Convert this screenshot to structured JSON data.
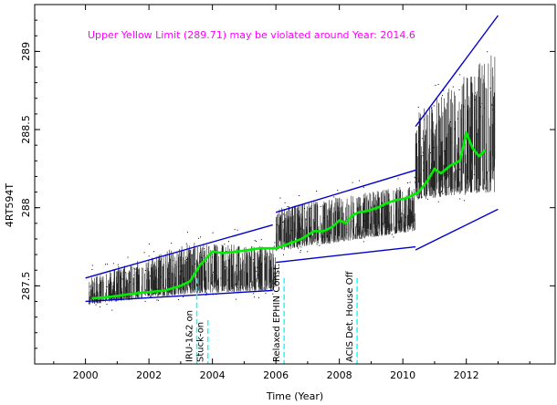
{
  "chart_data": {
    "type": "scatter",
    "title": "",
    "annotation": "Upper Yellow  Limit (289.71) may be violated around Year: 2014.6",
    "xlabel": "Time (Year)",
    "ylabel": "4RT594T",
    "xlim": [
      1998.4,
      2014.8
    ],
    "ylim": [
      287.0,
      289.3
    ],
    "x_ticks": [
      2000,
      2002,
      2004,
      2006,
      2008,
      2010,
      2012
    ],
    "y_ticks": [
      287.5,
      288,
      288.5,
      289
    ],
    "grid": false,
    "colors": {
      "data": "#000000",
      "moving_average": "#00ee00",
      "trend_limits": "#0000cc",
      "annotation": "#ff00ff",
      "events": "#00ffff"
    },
    "data_bands": [
      {
        "x0": 2000.1,
        "x1": 2003.3,
        "y_lo": 287.38,
        "y_lo_end": 287.45,
        "y_hi": 287.55,
        "y_hi_end": 287.78
      },
      {
        "x0": 2003.3,
        "x1": 2006.0,
        "y_lo": 287.45,
        "y_lo_end": 287.47,
        "y_hi": 287.78,
        "y_hi_end": 287.75
      },
      {
        "x0": 2006.0,
        "x1": 2010.4,
        "y_lo": 287.72,
        "y_lo_end": 287.85,
        "y_hi": 288.0,
        "y_hi_end": 288.15
      },
      {
        "x0": 2010.4,
        "x1": 2012.9,
        "y_lo": 288.05,
        "y_lo_end": 288.1,
        "y_hi": 288.6,
        "y_hi_end": 289.0
      }
    ],
    "moving_average": {
      "x": [
        2000.2,
        2000.8,
        2001.5,
        2002.0,
        2002.5,
        2003.0,
        2003.3,
        2003.6,
        2004.0,
        2004.3,
        2004.8,
        2005.5,
        2006.0,
        2006.4,
        2006.8,
        2007.2,
        2007.5,
        2007.8,
        2008.0,
        2008.2,
        2008.4,
        2008.6,
        2008.9,
        2009.2,
        2009.5,
        2009.8,
        2010.1,
        2010.5,
        2010.8,
        2011.0,
        2011.2,
        2011.5,
        2011.8,
        2012.0,
        2012.2,
        2012.4,
        2012.6
      ],
      "y": [
        287.42,
        287.43,
        287.45,
        287.46,
        287.47,
        287.5,
        287.53,
        287.63,
        287.72,
        287.71,
        287.72,
        287.74,
        287.74,
        287.77,
        287.8,
        287.85,
        287.85,
        287.88,
        287.92,
        287.9,
        287.95,
        287.97,
        287.98,
        288.0,
        288.03,
        288.05,
        288.06,
        288.1,
        288.18,
        288.25,
        288.22,
        288.27,
        288.3,
        288.48,
        288.38,
        288.33,
        288.37
      ]
    },
    "trend_lines": [
      {
        "x": [
          2000.0,
          2005.9
        ],
        "y": [
          287.55,
          287.89
        ]
      },
      {
        "x": [
          2000.0,
          2005.9
        ],
        "y": [
          287.4,
          287.47
        ]
      },
      {
        "x": [
          2006.0,
          2010.4
        ],
        "y": [
          287.97,
          288.24
        ]
      },
      {
        "x": [
          2006.0,
          2010.4
        ],
        "y": [
          287.65,
          287.75
        ]
      },
      {
        "x": [
          2010.4,
          2013.0
        ],
        "y": [
          288.52,
          289.23
        ]
      },
      {
        "x": [
          2010.4,
          2013.0
        ],
        "y": [
          287.73,
          287.99
        ]
      }
    ],
    "events": [
      {
        "label": "IRU-1&2 on",
        "x": 2003.25,
        "y_top": 287.55
      },
      {
        "label": "Stuck-on",
        "x": 2003.6,
        "y_top": 287.28
      },
      {
        "label": "Relaxed EPHIN Const.",
        "x": 2006.0,
        "y_top": 287.55
      },
      {
        "label": "ACIS Det. House Off",
        "x": 2008.3,
        "y_top": 287.55
      }
    ]
  }
}
